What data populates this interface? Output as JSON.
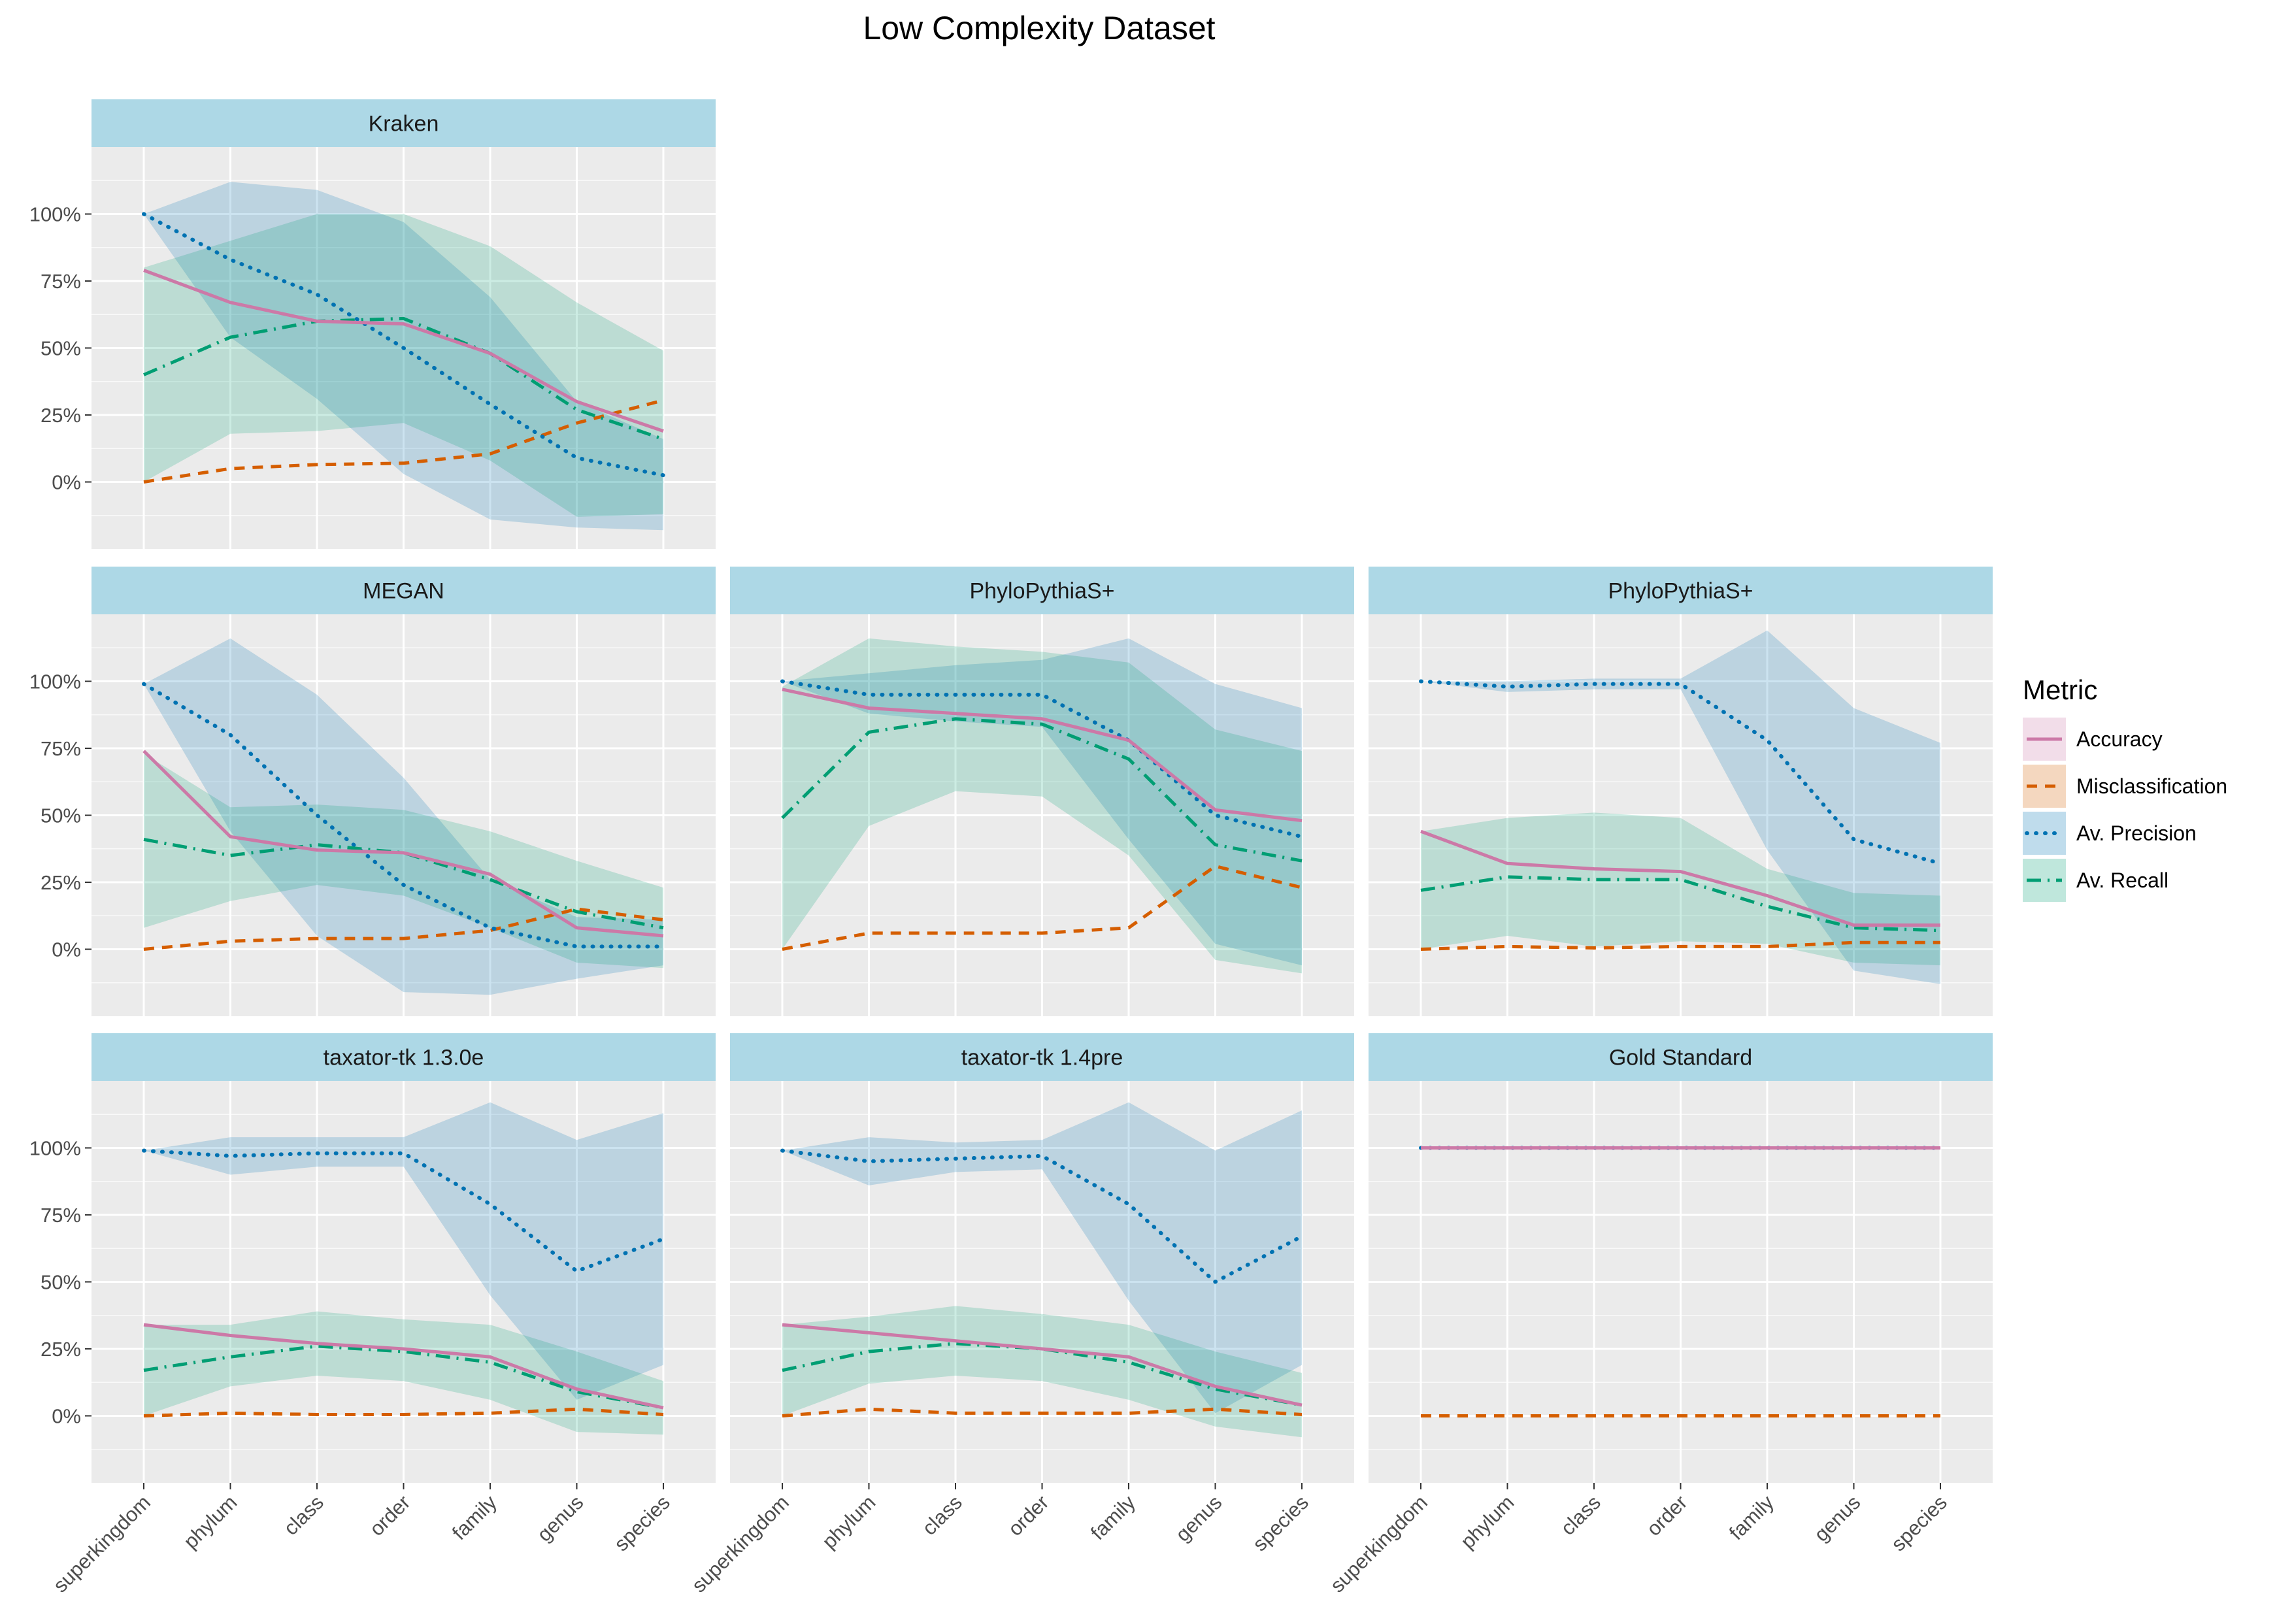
{
  "title": "Low Complexity Dataset",
  "legend": {
    "title": "Metric",
    "items": [
      {
        "key": "accuracy",
        "label": "Accuracy"
      },
      {
        "key": "misclassification",
        "label": "Misclassification"
      },
      {
        "key": "precision",
        "label": "Av. Precision"
      },
      {
        "key": "recall",
        "label": "Av. Recall"
      }
    ]
  },
  "colors": {
    "accuracy": "#CC79A7",
    "misclassification": "#D55E00",
    "precision": "#0072B2",
    "recall": "#009E73",
    "strip": "#ADD8E6",
    "panel": "#EBEBEB",
    "grid": "#FFFFFF",
    "axis_text": "#4D4D4D"
  },
  "chart_data": {
    "type": "line",
    "title": "Low Complexity Dataset",
    "x": [
      "superkingdom",
      "phylum",
      "class",
      "order",
      "family",
      "genus",
      "species"
    ],
    "y_ticks": [
      "0%",
      "25%",
      "50%",
      "75%",
      "100%"
    ],
    "ylim": [
      -25,
      125
    ],
    "grid": true,
    "legend_position": "right",
    "panels": [
      {
        "name": "Kraken",
        "row": 0,
        "col": 0,
        "series": {
          "accuracy": [
            79,
            67,
            60,
            59,
            48,
            30,
            19
          ],
          "misclassification": [
            0,
            5,
            6.5,
            7,
            10.5,
            22,
            30.5
          ],
          "precision": [
            100,
            83,
            70,
            50,
            29,
            9,
            2.5
          ],
          "recall": [
            40,
            54,
            60,
            61,
            48,
            27,
            16
          ]
        },
        "bands": {
          "precision": {
            "upper": [
              100,
              112,
              109,
              97,
              69,
              30,
              16
            ],
            "lower": [
              100,
              54,
              31,
              3,
              -14,
              -17,
              -18
            ]
          },
          "recall": {
            "upper": [
              80,
              90,
              100,
              100,
              88,
              67,
              49
            ],
            "lower": [
              0,
              18,
              19,
              22,
              8,
              -13,
              -12
            ]
          }
        }
      },
      {
        "name": "MEGAN",
        "row": 1,
        "col": 0,
        "series": {
          "accuracy": [
            74,
            42,
            37,
            36,
            28,
            8,
            5
          ],
          "misclassification": [
            0,
            3,
            4,
            4,
            7,
            15,
            11
          ],
          "precision": [
            99,
            80,
            50,
            24,
            8,
            1,
            1
          ],
          "recall": [
            41,
            35,
            39,
            36,
            26,
            14,
            8
          ]
        },
        "bands": {
          "precision": {
            "upper": [
              99,
              116,
              95,
              64,
              26,
              12,
              11
            ],
            "lower": [
              99,
              44,
              5,
              -16,
              -17,
              -11,
              -6
            ]
          },
          "recall": {
            "upper": [
              73,
              53,
              54,
              52,
              44,
              33,
              23
            ],
            "lower": [
              8,
              18,
              24,
              20,
              8,
              -5,
              -7
            ]
          }
        }
      },
      {
        "name": "PhyloPythiaS+",
        "row": 1,
        "col": 1,
        "series": {
          "accuracy": [
            97,
            90,
            88,
            86,
            78,
            52,
            48
          ],
          "misclassification": [
            0,
            6,
            6,
            6,
            8,
            31,
            23
          ],
          "precision": [
            100,
            95,
            95,
            95,
            78,
            50,
            42
          ],
          "recall": [
            49,
            81,
            86,
            84,
            71,
            39,
            33
          ]
        },
        "bands": {
          "precision": {
            "upper": [
              100,
              103,
              106,
              108,
              116,
              99,
              90
            ],
            "lower": [
              100,
              88,
              85,
              83,
              41,
              2,
              -6
            ]
          },
          "recall": {
            "upper": [
              98,
              116,
              113,
              111,
              107,
              82,
              74
            ],
            "lower": [
              0,
              46,
              59,
              57,
              35,
              -4,
              -9
            ]
          }
        }
      },
      {
        "name": "PhyloPythiaS+",
        "row": 1,
        "col": 2,
        "series": {
          "accuracy": [
            44,
            32,
            30,
            29,
            20,
            9,
            9
          ],
          "misclassification": [
            0,
            1,
            0.5,
            1,
            1,
            2.5,
            2.5
          ],
          "precision": [
            100,
            98,
            99,
            99,
            78,
            41,
            32
          ],
          "recall": [
            22,
            27,
            26,
            26,
            16,
            8,
            7
          ]
        },
        "bands": {
          "precision": {
            "upper": [
              100,
              100,
              101,
              101,
              119,
              90,
              77
            ],
            "lower": [
              100,
              96,
              97,
              97,
              37,
              -8,
              -13
            ]
          },
          "recall": {
            "upper": [
              44,
              49,
              51,
              49,
              30,
              21,
              20
            ],
            "lower": [
              0,
              5,
              1,
              3,
              2,
              -5,
              -6
            ]
          }
        }
      },
      {
        "name": "taxator-tk 1.3.0e",
        "row": 2,
        "col": 0,
        "series": {
          "accuracy": [
            34,
            30,
            27,
            25,
            22,
            10,
            3
          ],
          "misclassification": [
            0,
            1,
            0.5,
            0.5,
            1,
            2.5,
            0.5
          ],
          "precision": [
            99,
            97,
            98,
            98,
            79,
            54,
            66
          ],
          "recall": [
            17,
            22,
            26,
            24,
            20,
            9,
            3
          ]
        },
        "bands": {
          "precision": {
            "upper": [
              99,
              104,
              104,
              104,
              117,
              103,
              113
            ],
            "lower": [
              99,
              90,
              93,
              93,
              45,
              6,
              19
            ]
          },
          "recall": {
            "upper": [
              34,
              34,
              39,
              36,
              34,
              24,
              13
            ],
            "lower": [
              0,
              11,
              15,
              13,
              6,
              -6,
              -7
            ]
          }
        }
      },
      {
        "name": "taxator-tk 1.4pre",
        "row": 2,
        "col": 1,
        "series": {
          "accuracy": [
            34,
            31,
            28,
            25,
            22,
            11,
            4
          ],
          "misclassification": [
            0,
            2.5,
            1,
            1,
            1,
            2.5,
            0.5
          ],
          "precision": [
            99,
            95,
            96,
            97,
            79,
            50,
            67
          ],
          "recall": [
            17,
            24,
            27,
            25,
            20,
            10,
            4
          ]
        },
        "bands": {
          "precision": {
            "upper": [
              99,
              104,
              102,
              103,
              117,
              99,
              114
            ],
            "lower": [
              99,
              86,
              91,
              92,
              43,
              1,
              19
            ]
          },
          "recall": {
            "upper": [
              34,
              37,
              41,
              38,
              34,
              24,
              16
            ],
            "lower": [
              0,
              12,
              15,
              13,
              6,
              -4,
              -8
            ]
          }
        }
      },
      {
        "name": "Gold Standard",
        "row": 2,
        "col": 2,
        "series": {
          "accuracy": [
            100,
            100,
            100,
            100,
            100,
            100,
            100
          ],
          "misclassification": [
            0,
            0,
            0,
            0,
            0,
            0,
            0
          ],
          "precision": [
            100,
            100,
            100,
            100,
            100,
            100,
            100
          ],
          "recall": [
            100,
            100,
            100,
            100,
            100,
            100,
            100
          ]
        },
        "bands": {}
      }
    ]
  }
}
